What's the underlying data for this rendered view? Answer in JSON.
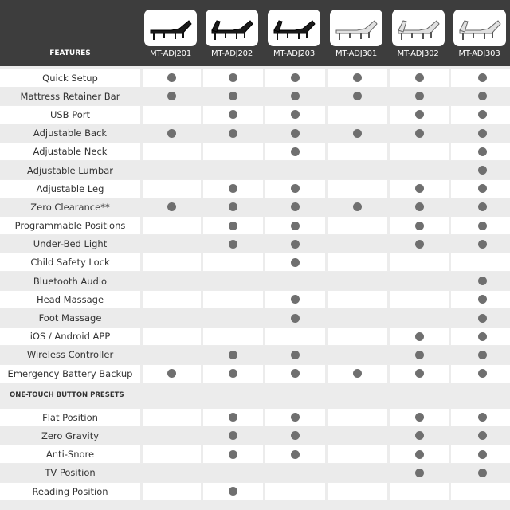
{
  "header": {
    "features_label": "FEATURES",
    "models": [
      {
        "name": "MT-ADJ201",
        "frame_color": "#1a1a1a"
      },
      {
        "name": "MT-ADJ202",
        "frame_color": "#1a1a1a"
      },
      {
        "name": "MT-ADJ203",
        "frame_color": "#1a1a1a"
      },
      {
        "name": "MT-ADJ301",
        "frame_color": "#e0e0e0"
      },
      {
        "name": "MT-ADJ302",
        "frame_color": "#e0e0e0"
      },
      {
        "name": "MT-ADJ303",
        "frame_color": "#e0e0e0"
      }
    ]
  },
  "features": [
    {
      "label": "Quick Setup",
      "has": [
        1,
        1,
        1,
        1,
        1,
        1
      ]
    },
    {
      "label": "Mattress Retainer Bar",
      "has": [
        1,
        1,
        1,
        1,
        1,
        1
      ]
    },
    {
      "label": "USB Port",
      "has": [
        0,
        1,
        1,
        0,
        1,
        1
      ]
    },
    {
      "label": "Adjustable Back",
      "has": [
        1,
        1,
        1,
        1,
        1,
        1
      ]
    },
    {
      "label": "Adjustable Neck",
      "has": [
        0,
        0,
        1,
        0,
        0,
        1
      ]
    },
    {
      "label": "Adjustable Lumbar",
      "has": [
        0,
        0,
        0,
        0,
        0,
        1
      ]
    },
    {
      "label": "Adjustable Leg",
      "has": [
        0,
        1,
        1,
        0,
        1,
        1
      ]
    },
    {
      "label": "Zero Clearance**",
      "has": [
        1,
        1,
        1,
        1,
        1,
        1
      ]
    },
    {
      "label": "Programmable Positions",
      "has": [
        0,
        1,
        1,
        0,
        1,
        1
      ]
    },
    {
      "label": "Under-Bed Light",
      "has": [
        0,
        1,
        1,
        0,
        1,
        1
      ]
    },
    {
      "label": "Child Safety Lock",
      "has": [
        0,
        0,
        1,
        0,
        0,
        0
      ]
    },
    {
      "label": "Bluetooth Audio",
      "has": [
        0,
        0,
        0,
        0,
        0,
        1
      ]
    },
    {
      "label": "Head Massage",
      "has": [
        0,
        0,
        1,
        0,
        0,
        1
      ]
    },
    {
      "label": "Foot Massage",
      "has": [
        0,
        0,
        1,
        0,
        0,
        1
      ]
    },
    {
      "label": "iOS / Android APP",
      "has": [
        0,
        0,
        0,
        0,
        1,
        1
      ]
    },
    {
      "label": "Wireless Controller",
      "has": [
        0,
        1,
        1,
        0,
        1,
        1
      ]
    },
    {
      "label": "Emergency Battery Backup",
      "has": [
        1,
        1,
        1,
        1,
        1,
        1
      ]
    }
  ],
  "presets_section": {
    "title": "ONE-TOUCH BUTTON PRESETS",
    "items": [
      {
        "label": "Flat Position",
        "has": [
          0,
          1,
          1,
          0,
          1,
          1
        ]
      },
      {
        "label": "Zero Gravity",
        "has": [
          0,
          1,
          1,
          0,
          1,
          1
        ]
      },
      {
        "label": "Anti-Snore",
        "has": [
          0,
          1,
          1,
          0,
          1,
          1
        ]
      },
      {
        "label": "TV Position",
        "has": [
          0,
          0,
          0,
          0,
          1,
          1
        ]
      },
      {
        "label": "Reading Position",
        "has": [
          0,
          1,
          0,
          0,
          0,
          0
        ]
      }
    ]
  },
  "colors": {
    "header_bg": "#3d3d3d",
    "dot": "#6f6f6f",
    "row_alt": "#ebebeb"
  }
}
